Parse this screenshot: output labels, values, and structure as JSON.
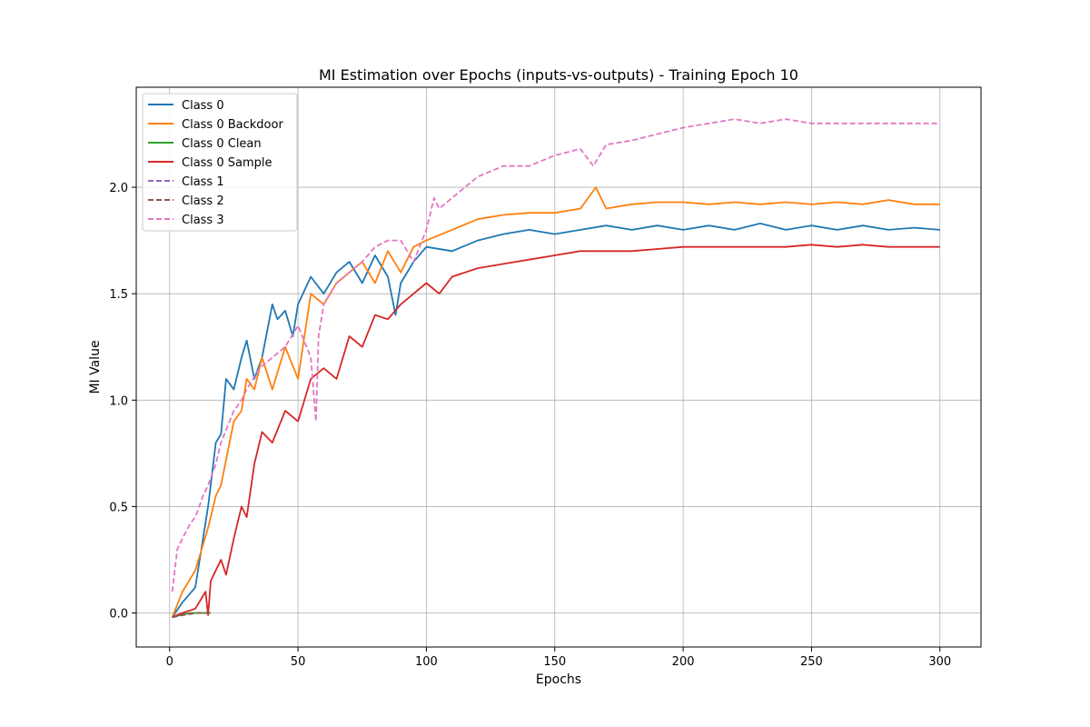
{
  "chart_data": {
    "type": "line",
    "title": "MI Estimation over Epochs (inputs-vs-outputs) - Training Epoch 10",
    "xlabel": "Epochs",
    "ylabel": "MI Value",
    "xlim": [
      -13,
      316
    ],
    "ylim": [
      -0.16,
      2.47
    ],
    "xticks": [
      "0",
      "50",
      "100",
      "150",
      "200",
      "250",
      "300"
    ],
    "yticks": [
      "0.0",
      "0.5",
      "1.0",
      "1.5",
      "2.0"
    ],
    "grid": true,
    "legend_position": "top-left",
    "series": [
      {
        "name": "Class 0",
        "color": "#1f77b4",
        "dash": "solid",
        "x": [
          1,
          5,
          10,
          15,
          18,
          20,
          22,
          25,
          28,
          30,
          33,
          36,
          40,
          42,
          45,
          48,
          50,
          55,
          60,
          65,
          70,
          75,
          80,
          85,
          88,
          90,
          95,
          100,
          110,
          120,
          130,
          140,
          150,
          160,
          170,
          180,
          190,
          200,
          210,
          220,
          230,
          240,
          250,
          260,
          270,
          280,
          290,
          300
        ],
        "y": [
          -0.02,
          0.05,
          0.12,
          0.5,
          0.8,
          0.84,
          1.1,
          1.05,
          1.2,
          1.28,
          1.1,
          1.2,
          1.45,
          1.38,
          1.42,
          1.3,
          1.45,
          1.58,
          1.5,
          1.6,
          1.65,
          1.55,
          1.68,
          1.58,
          1.4,
          1.55,
          1.65,
          1.72,
          1.7,
          1.75,
          1.78,
          1.8,
          1.78,
          1.8,
          1.82,
          1.8,
          1.82,
          1.8,
          1.82,
          1.8,
          1.83,
          1.8,
          1.82,
          1.8,
          1.82,
          1.8,
          1.81,
          1.8
        ]
      },
      {
        "name": "Class 0 Backdoor",
        "color": "#ff7f0e",
        "dash": "solid",
        "x": [
          1,
          5,
          10,
          15,
          18,
          20,
          22,
          25,
          28,
          30,
          33,
          36,
          40,
          45,
          50,
          55,
          60,
          65,
          70,
          75,
          80,
          85,
          90,
          95,
          100,
          110,
          120,
          130,
          140,
          150,
          160,
          166,
          170,
          180,
          190,
          200,
          210,
          220,
          230,
          240,
          250,
          260,
          270,
          280,
          290,
          300
        ],
        "y": [
          -0.02,
          0.1,
          0.2,
          0.4,
          0.55,
          0.6,
          0.72,
          0.9,
          0.95,
          1.1,
          1.05,
          1.2,
          1.05,
          1.25,
          1.1,
          1.5,
          1.45,
          1.55,
          1.6,
          1.65,
          1.55,
          1.7,
          1.6,
          1.72,
          1.75,
          1.8,
          1.85,
          1.87,
          1.88,
          1.88,
          1.9,
          2.0,
          1.9,
          1.92,
          1.93,
          1.93,
          1.92,
          1.93,
          1.92,
          1.93,
          1.92,
          1.93,
          1.92,
          1.94,
          1.92,
          1.92
        ]
      },
      {
        "name": "Class 0 Clean",
        "color": "#2ca02c",
        "dash": "solid",
        "x": [
          1,
          4,
          8,
          12,
          16
        ],
        "y": [
          -0.02,
          -0.01,
          0.0,
          0.0,
          0.0
        ]
      },
      {
        "name": "Class 0 Sample",
        "color": "#d62728",
        "dash": "solid",
        "x": [
          1,
          5,
          10,
          14,
          15,
          16,
          18,
          20,
          22,
          25,
          28,
          30,
          33,
          36,
          40,
          45,
          50,
          55,
          60,
          65,
          70,
          75,
          80,
          85,
          90,
          95,
          100,
          105,
          110,
          120,
          130,
          140,
          150,
          160,
          170,
          180,
          190,
          200,
          210,
          220,
          230,
          240,
          250,
          260,
          270,
          280,
          290,
          300
        ],
        "y": [
          -0.02,
          0.0,
          0.02,
          0.1,
          -0.01,
          0.15,
          0.2,
          0.25,
          0.18,
          0.35,
          0.5,
          0.45,
          0.7,
          0.85,
          0.8,
          0.95,
          0.9,
          1.1,
          1.15,
          1.1,
          1.3,
          1.25,
          1.4,
          1.38,
          1.45,
          1.5,
          1.55,
          1.5,
          1.58,
          1.62,
          1.64,
          1.66,
          1.68,
          1.7,
          1.7,
          1.7,
          1.71,
          1.72,
          1.72,
          1.72,
          1.72,
          1.72,
          1.73,
          1.72,
          1.73,
          1.72,
          1.72,
          1.72
        ]
      },
      {
        "name": "Class 1",
        "color": "#9467bd",
        "dash": "dashed",
        "x": [
          1,
          5,
          10
        ],
        "y": [
          -0.02,
          -0.01,
          0.0
        ]
      },
      {
        "name": "Class 2",
        "color": "#8c564b",
        "dash": "dashed",
        "x": [
          1,
          5,
          10,
          15
        ],
        "y": [
          -0.02,
          -0.01,
          0.0,
          0.0
        ]
      },
      {
        "name": "Class 3",
        "color": "#e377c2",
        "dash": "dashed",
        "x": [
          1,
          3,
          5,
          8,
          10,
          13,
          15,
          18,
          20,
          25,
          28,
          30,
          35,
          40,
          45,
          50,
          55,
          57,
          58,
          60,
          65,
          70,
          75,
          80,
          85,
          90,
          95,
          100,
          103,
          105,
          110,
          120,
          130,
          140,
          150,
          160,
          165,
          170,
          180,
          190,
          200,
          210,
          220,
          230,
          240,
          250,
          260,
          270,
          280,
          290,
          300
        ],
        "y": [
          0.1,
          0.3,
          0.35,
          0.42,
          0.45,
          0.55,
          0.6,
          0.7,
          0.8,
          0.95,
          1.0,
          1.05,
          1.15,
          1.2,
          1.25,
          1.35,
          1.2,
          0.9,
          1.3,
          1.45,
          1.55,
          1.6,
          1.65,
          1.72,
          1.75,
          1.75,
          1.65,
          1.8,
          1.95,
          1.9,
          1.95,
          2.05,
          2.1,
          2.1,
          2.15,
          2.18,
          2.1,
          2.2,
          2.22,
          2.25,
          2.28,
          2.3,
          2.32,
          2.3,
          2.32,
          2.3,
          2.3,
          2.3,
          2.3,
          2.3,
          2.3
        ]
      }
    ]
  }
}
